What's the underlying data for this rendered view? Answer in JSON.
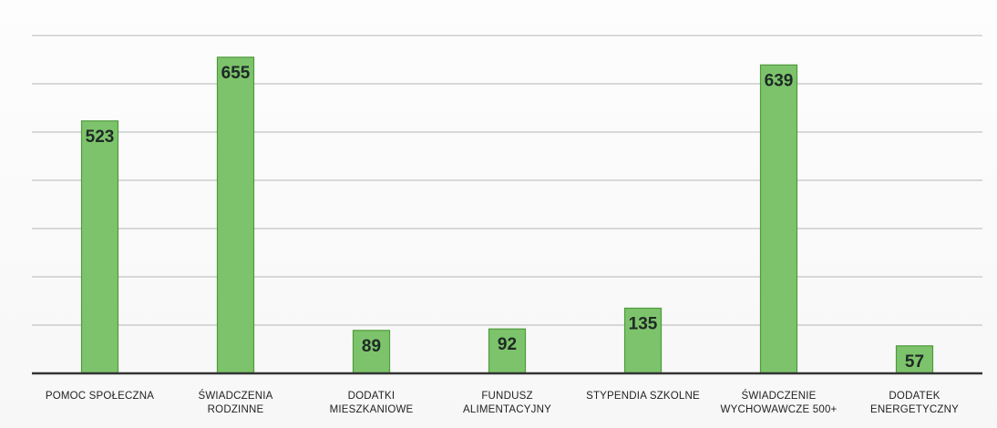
{
  "chart_data": {
    "type": "bar",
    "title": "",
    "xlabel": "",
    "ylabel": "",
    "categories": [
      "POMOC SPOŁECZNA",
      "ŚWIADCZENIA RODZINNE",
      "DODATKI MIESZKANIOWE",
      "FUNDUSZ ALIMENTACYJNY",
      "STYPENDIA SZKOLNE",
      "ŚWIADCZENIE WYCHOWAWCZE 500+",
      "DODATEK ENERGETYCZNY"
    ],
    "category_lines": [
      [
        "POMOC SPOŁECZNA"
      ],
      [
        "ŚWIADCZENIA",
        "RODZINNE"
      ],
      [
        "DODATKI",
        "MIESZKANIOWE"
      ],
      [
        "FUNDUSZ",
        "ALIMENTACYJNY"
      ],
      [
        "STYPENDIA SZKOLNE"
      ],
      [
        "ŚWIADCZENIE",
        "WYCHOWAWCZE 500+"
      ],
      [
        "DODATEK",
        "ENERGETYCZNY"
      ]
    ],
    "values": [
      523,
      655,
      89,
      92,
      135,
      639,
      57
    ],
    "data_labels": [
      "523",
      "655",
      "89",
      "92",
      "135",
      "639",
      "57"
    ],
    "ylim": [
      0,
      700
    ],
    "grid": true,
    "legend": "none",
    "bar_color": "#7dc36b",
    "bar_edge_color": "#4f9a3c",
    "gridline_color": "#b5b5b5",
    "axis_color": "#333333"
  }
}
